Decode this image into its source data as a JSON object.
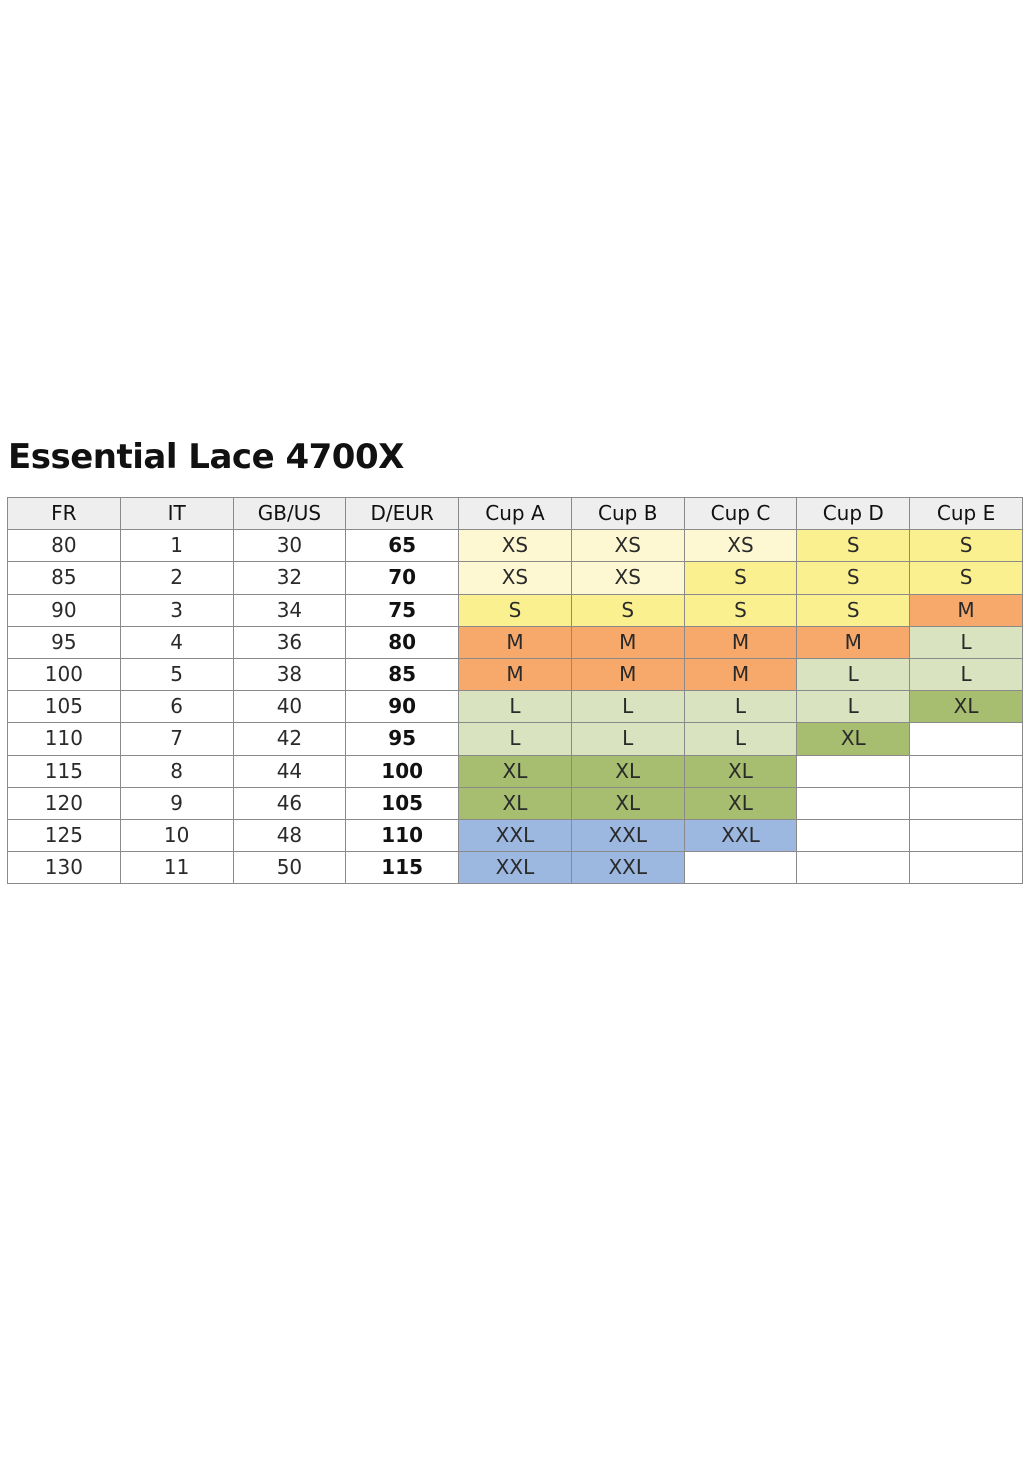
{
  "title": "Essential Lace 4700X",
  "colors": {
    "XS": "#fdf7d2",
    "S": "#fbf08f",
    "M": "#f6a96a",
    "L": "#dae3c0",
    "XL": "#a7be70",
    "XXL": "#9cb7e0",
    "header": "#eeeeee",
    "border": "#8a8a8a"
  },
  "table": {
    "headers": [
      "FR",
      "IT",
      "GB/US",
      "D/EUR",
      "Cup A",
      "Cup B",
      "Cup C",
      "Cup D",
      "Cup E"
    ],
    "rows": [
      {
        "fr": "80",
        "it": "1",
        "gb_us": "30",
        "d_eur": "65",
        "cups": [
          "XS",
          "XS",
          "XS",
          "S",
          "S"
        ]
      },
      {
        "fr": "85",
        "it": "2",
        "gb_us": "32",
        "d_eur": "70",
        "cups": [
          "XS",
          "XS",
          "S",
          "S",
          "S"
        ]
      },
      {
        "fr": "90",
        "it": "3",
        "gb_us": "34",
        "d_eur": "75",
        "cups": [
          "S",
          "S",
          "S",
          "S",
          "M"
        ]
      },
      {
        "fr": "95",
        "it": "4",
        "gb_us": "36",
        "d_eur": "80",
        "cups": [
          "M",
          "M",
          "M",
          "M",
          "L"
        ]
      },
      {
        "fr": "100",
        "it": "5",
        "gb_us": "38",
        "d_eur": "85",
        "cups": [
          "M",
          "M",
          "M",
          "L",
          "L"
        ]
      },
      {
        "fr": "105",
        "it": "6",
        "gb_us": "40",
        "d_eur": "90",
        "cups": [
          "L",
          "L",
          "L",
          "L",
          "XL"
        ]
      },
      {
        "fr": "110",
        "it": "7",
        "gb_us": "42",
        "d_eur": "95",
        "cups": [
          "L",
          "L",
          "L",
          "XL",
          ""
        ]
      },
      {
        "fr": "115",
        "it": "8",
        "gb_us": "44",
        "d_eur": "100",
        "cups": [
          "XL",
          "XL",
          "XL",
          "",
          ""
        ]
      },
      {
        "fr": "120",
        "it": "9",
        "gb_us": "46",
        "d_eur": "105",
        "cups": [
          "XL",
          "XL",
          "XL",
          "",
          ""
        ]
      },
      {
        "fr": "125",
        "it": "10",
        "gb_us": "48",
        "d_eur": "110",
        "cups": [
          "XXL",
          "XXL",
          "XXL",
          "",
          ""
        ]
      },
      {
        "fr": "130",
        "it": "11",
        "gb_us": "50",
        "d_eur": "115",
        "cups": [
          "XXL",
          "XXL",
          "",
          "",
          ""
        ]
      }
    ]
  }
}
